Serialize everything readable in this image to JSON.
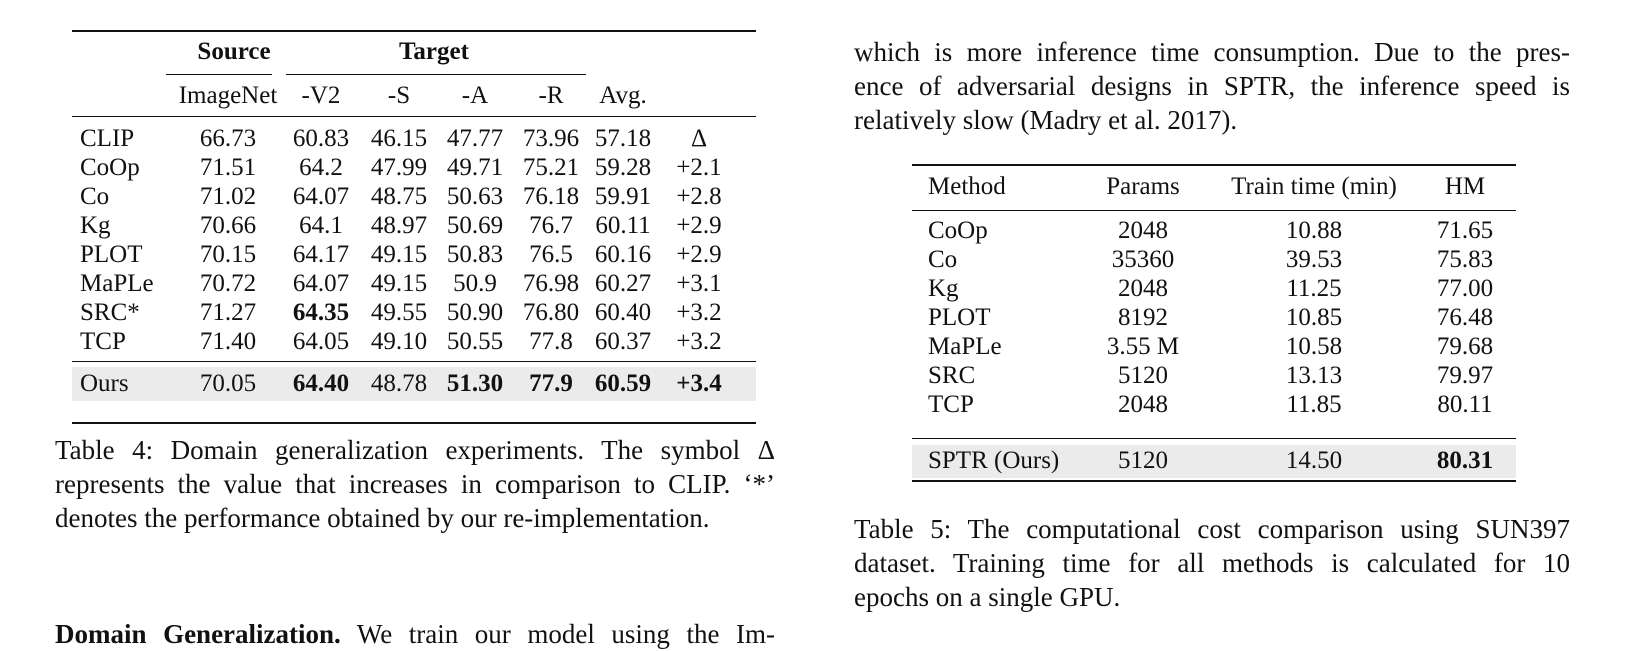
{
  "table4": {
    "group_source": "Source",
    "group_target": "Target",
    "columns": [
      "ImageNet",
      "-V2",
      "-S",
      "-A",
      "-R",
      "Avg."
    ],
    "rows": [
      {
        "name": "CLIP",
        "c": [
          "66.73",
          "60.83",
          "46.15",
          "47.77",
          "73.96",
          "57.18",
          "Δ"
        ]
      },
      {
        "name": "CoOp",
        "c": [
          "71.51",
          "64.2",
          "47.99",
          "49.71",
          "75.21",
          "59.28",
          "+2.1"
        ]
      },
      {
        "name": "Co",
        "c": [
          "71.02",
          "64.07",
          "48.75",
          "50.63",
          "76.18",
          "59.91",
          "+2.8"
        ]
      },
      {
        "name": "Kg",
        "c": [
          "70.66",
          "64.1",
          "48.97",
          "50.69",
          "76.7",
          "60.11",
          "+2.9"
        ]
      },
      {
        "name": "PLOT",
        "c": [
          "70.15",
          "64.17",
          "49.15",
          "50.83",
          "76.5",
          "60.16",
          "+2.9"
        ]
      },
      {
        "name": "MaPLe",
        "c": [
          "70.72",
          "64.07",
          "49.15",
          "50.9",
          "76.98",
          "60.27",
          "+3.1"
        ]
      },
      {
        "name": "SRC*",
        "c": [
          "71.27",
          "64.35",
          "49.55",
          "50.90",
          "76.80",
          "60.40",
          "+3.2"
        ]
      },
      {
        "name": "TCP",
        "c": [
          "71.40",
          "64.05",
          "49.10",
          "50.55",
          "77.8",
          "60.37",
          "+3.2"
        ]
      }
    ],
    "ours": {
      "name": "Ours",
      "c": [
        "70.05",
        "64.40",
        "48.78",
        "51.30",
        "77.9",
        "60.59",
        "+3.4"
      ]
    },
    "caption_lines": [
      "Table 4: Domain generalization experiments. The symbol Δ",
      "represents the value that increases in comparison to CLIP. ‘*’",
      "denotes the performance obtained by our re-implementation."
    ]
  },
  "section_heading": "Domain Generalization.",
  "section_text": " We train our model using the Im-",
  "right_paragraph_lines": [
    "which is more inference time consumption. Due to the pres-",
    "ence of adversarial designs in SPTR, the inference speed is",
    "relatively slow (Madry et al. 2017)."
  ],
  "table5": {
    "columns": [
      "Method",
      "Params",
      "Train time (min)",
      "HM"
    ],
    "rows": [
      {
        "name": "CoOp",
        "c": [
          "2048",
          "10.88",
          "71.65"
        ]
      },
      {
        "name": "Co",
        "c": [
          "35360",
          "39.53",
          "75.83"
        ]
      },
      {
        "name": "Kg",
        "c": [
          "2048",
          "11.25",
          "77.00"
        ]
      },
      {
        "name": "PLOT",
        "c": [
          "8192",
          "10.85",
          "76.48"
        ]
      },
      {
        "name": "MaPLe",
        "c": [
          "3.55 M",
          "10.58",
          "79.68"
        ]
      },
      {
        "name": "SRC",
        "c": [
          "5120",
          "13.13",
          "79.97"
        ]
      },
      {
        "name": "TCP",
        "c": [
          "2048",
          "11.85",
          "80.11"
        ]
      }
    ],
    "ours": {
      "name": "SPTR (Ours)",
      "c": [
        "5120",
        "14.50",
        "80.31"
      ]
    },
    "caption_lines": [
      "Table 5: The computational cost comparison using SUN397",
      "dataset. Training time for all methods is calculated for 10",
      "epochs on a single GPU."
    ]
  }
}
